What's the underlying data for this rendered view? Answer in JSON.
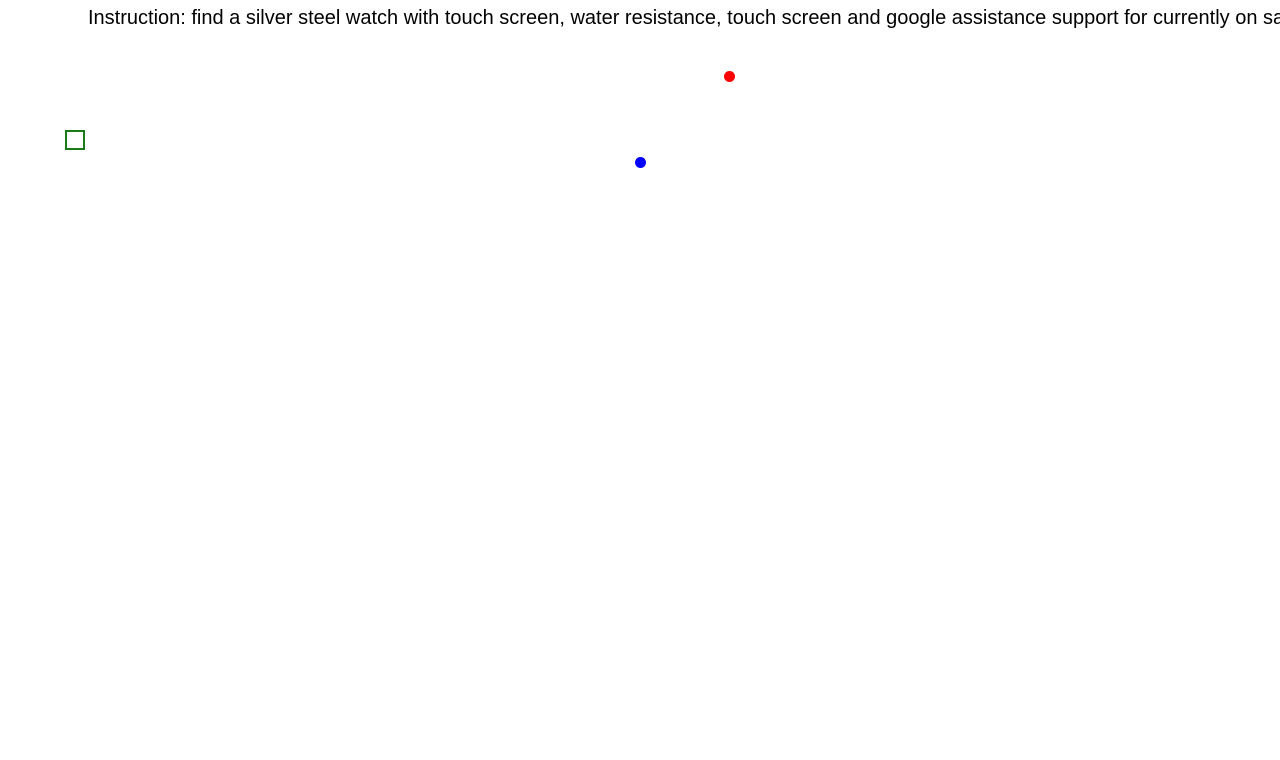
{
  "instruction": {
    "text": "Instruction: find a silver steel watch with touch screen, water resistance, touch screen and google assistance support for currently on sa"
  },
  "markers": {
    "checkbox": {
      "color": "#1a7a1a",
      "checked": false
    },
    "red_dot": {
      "color": "#ff0000"
    },
    "blue_dot": {
      "color": "#0000ff"
    }
  }
}
